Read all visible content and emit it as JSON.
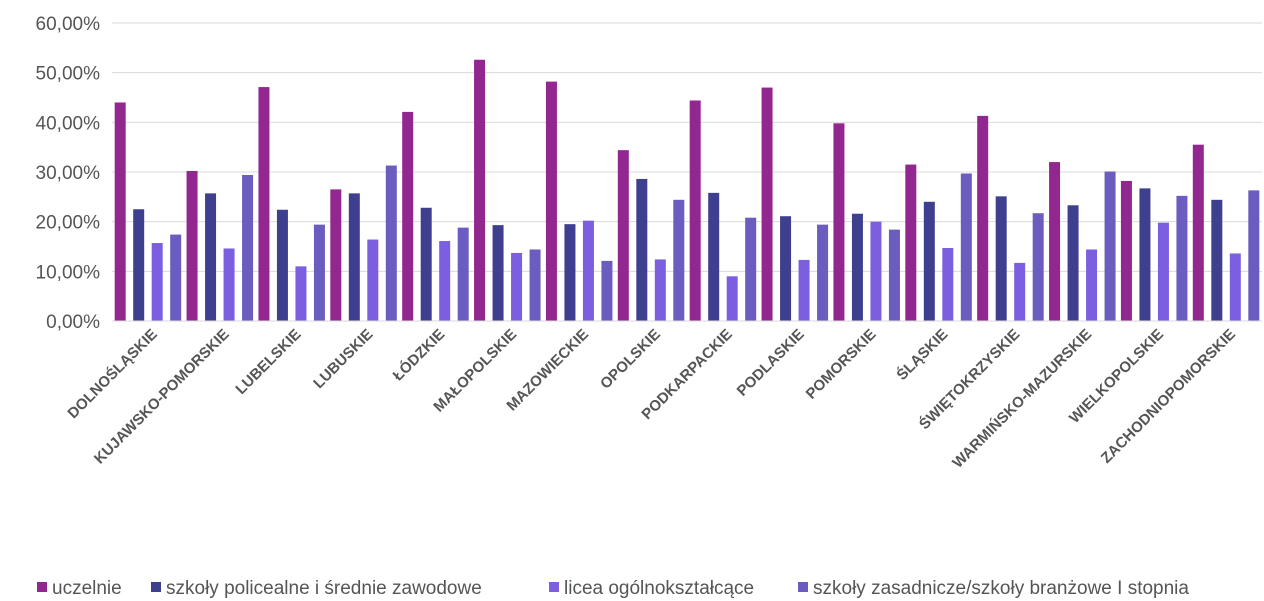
{
  "chart_data": {
    "type": "bar",
    "title": "",
    "xlabel": "",
    "ylabel": "",
    "ylim": [
      0,
      60
    ],
    "ytick_labels": [
      "0,00%",
      "10,00%",
      "20,00%",
      "30,00%",
      "40,00%",
      "50,00%",
      "60,00%"
    ],
    "grid": true,
    "legend_position": "bottom",
    "categories": [
      "DOLNOŚLĄSKIE",
      "KUJAWSKO-POMORSKIE",
      "LUBELSKIE",
      "LUBUSKIE",
      "ŁÓDZKIE",
      "MAŁOPOLSKIE",
      "MAZOWIECKIE",
      "OPOLSKIE",
      "PODKARPACKIE",
      "PODLASKIE",
      "POMORSKIE",
      "ŚLĄSKIE",
      "ŚWIĘTOKRZYSKIE",
      "WARMIŃSKO-MAZURSKIE",
      "WIELKOPOLSKIE",
      "ZACHODNIOPOMORSKIE"
    ],
    "series": [
      {
        "name": "uczelnie",
        "color": "#92278f",
        "values": [
          44.0,
          30.2,
          47.1,
          26.5,
          42.1,
          52.6,
          48.2,
          34.4,
          44.4,
          47.0,
          39.8,
          31.5,
          41.3,
          32.0,
          28.2,
          35.5
        ]
      },
      {
        "name": "szkoły policealne i średnie zawodowe",
        "color": "#3f3f8f",
        "values": [
          22.5,
          25.7,
          22.4,
          25.7,
          22.8,
          19.3,
          19.5,
          28.6,
          25.8,
          21.1,
          21.6,
          24.0,
          25.1,
          23.3,
          26.7,
          24.4
        ]
      },
      {
        "name": "licea ogólnokształcące",
        "color": "#7b5fe0",
        "values": [
          15.7,
          14.6,
          11.0,
          16.4,
          16.1,
          13.7,
          20.2,
          12.4,
          9.0,
          12.3,
          20.0,
          14.7,
          11.7,
          14.4,
          19.8,
          13.6
        ]
      },
      {
        "name": "szkoły zasadnicze/szkoły branżowe I stopnia",
        "color": "#6b5cc0",
        "values": [
          17.4,
          29.4,
          19.4,
          31.3,
          18.8,
          14.4,
          12.1,
          24.4,
          20.8,
          19.4,
          18.4,
          29.7,
          21.7,
          30.1,
          25.2,
          26.3
        ]
      }
    ]
  }
}
